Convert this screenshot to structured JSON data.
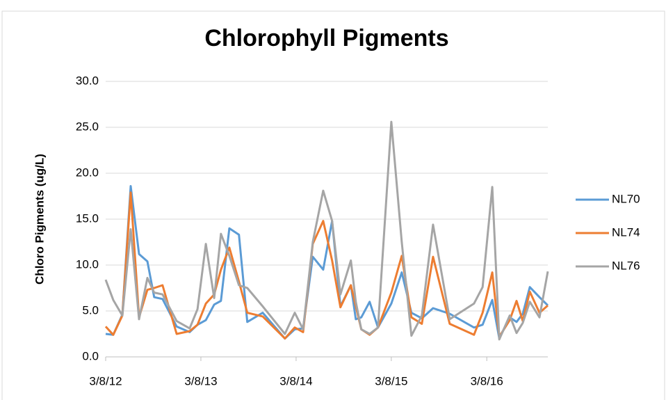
{
  "chart_data": {
    "type": "line",
    "title": "Chlorophyll Pigments",
    "y_label": "Chloro Pigments (ug/L)",
    "x": [
      "2012-03-08",
      "2012-04-06",
      "2012-05-11",
      "2012-06-12",
      "2012-07-14",
      "2012-08-15",
      "2012-09-10",
      "2012-10-12",
      "2012-12-05",
      "2013-01-24",
      "2013-02-23",
      "2013-03-27",
      "2013-04-28",
      "2013-05-24",
      "2013-06-25",
      "2013-08-01",
      "2013-09-02",
      "2013-10-31",
      "2014-01-24",
      "2014-03-03",
      "2014-04-04",
      "2014-05-11",
      "2014-06-20",
      "2014-07-24",
      "2014-08-25",
      "2014-10-04",
      "2014-10-23",
      "2014-11-13",
      "2014-12-15",
      "2015-01-16",
      "2015-03-08",
      "2015-04-17",
      "2015-05-24",
      "2015-07-03",
      "2015-08-15",
      "2015-10-18",
      "2016-01-19",
      "2016-02-21",
      "2016-03-29",
      "2016-04-25",
      "2016-06-04",
      "2016-06-30",
      "2016-07-24",
      "2016-08-20",
      "2016-09-26",
      "2016-10-28"
    ],
    "series": [
      {
        "name": "NL70",
        "color": "#5b9bd5",
        "values": [
          2.5,
          2.4,
          4.6,
          18.6,
          11.2,
          10.4,
          6.5,
          6.3,
          3.3,
          2.7,
          3.5,
          4.0,
          5.7,
          6.1,
          14.0,
          13.3,
          3.8,
          4.8,
          2.0,
          3.0,
          3.1,
          10.9,
          9.5,
          14.8,
          5.5,
          7.8,
          4.1,
          4.3,
          6.0,
          3.2,
          5.8,
          9.2,
          4.8,
          4.2,
          5.3,
          4.7,
          3.2,
          3.5,
          6.2,
          2.0,
          4.3,
          3.8,
          4.7,
          7.6,
          6.5,
          5.6
        ]
      },
      {
        "name": "NL74",
        "color": "#ed7d31",
        "values": [
          3.3,
          2.4,
          4.5,
          17.9,
          4.3,
          7.3,
          7.5,
          7.8,
          2.5,
          2.8,
          3.5,
          5.8,
          6.8,
          9.5,
          11.9,
          8.2,
          4.8,
          4.4,
          2.0,
          3.2,
          2.7,
          12.3,
          14.8,
          10.5,
          5.4,
          7.8,
          5.5,
          3.0,
          2.4,
          3.2,
          7.0,
          11.0,
          4.3,
          3.6,
          10.9,
          3.6,
          2.4,
          4.8,
          9.2,
          2.2,
          4.0,
          6.1,
          3.9,
          7.1,
          4.8,
          5.6
        ]
      },
      {
        "name": "NL76",
        "color": "#a5a5a5",
        "values": [
          8.4,
          6.2,
          4.5,
          13.9,
          4.1,
          8.6,
          7.0,
          6.8,
          3.9,
          3.1,
          5.2,
          12.3,
          6.4,
          13.4,
          11.0,
          7.8,
          7.5,
          5.5,
          2.5,
          4.8,
          3.0,
          12.5,
          18.1,
          14.8,
          6.8,
          10.5,
          6.0,
          3.0,
          2.5,
          3.2,
          25.6,
          12.5,
          2.3,
          4.5,
          14.4,
          4.1,
          5.8,
          7.6,
          18.5,
          1.9,
          4.5,
          2.6,
          3.7,
          6.0,
          4.3,
          9.3
        ]
      }
    ],
    "xlim": [
      "2012-03-08",
      "2016-10-28"
    ],
    "xticks": [
      {
        "value": "2012-03-08",
        "label": "3/8/12"
      },
      {
        "value": "2013-03-08",
        "label": "3/8/13"
      },
      {
        "value": "2014-03-08",
        "label": "3/8/14"
      },
      {
        "value": "2015-03-08",
        "label": "3/8/15"
      },
      {
        "value": "2016-03-08",
        "label": "3/8/16"
      }
    ],
    "ylim": [
      0,
      30
    ],
    "yticks": [
      {
        "value": 0,
        "label": "0.0"
      },
      {
        "value": 5,
        "label": "5.0"
      },
      {
        "value": 10,
        "label": "10.0"
      },
      {
        "value": 15,
        "label": "15.0"
      },
      {
        "value": 20,
        "label": "20.0"
      },
      {
        "value": 25,
        "label": "25.0"
      },
      {
        "value": 30,
        "label": "30.0"
      }
    ],
    "grid": true,
    "legend": "right"
  }
}
